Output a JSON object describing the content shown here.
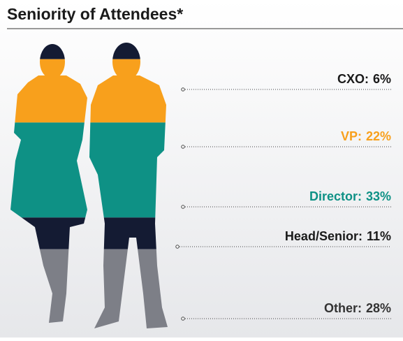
{
  "chart_data": {
    "type": "pictorial",
    "title": "Seniority of Attendees*",
    "categories": [
      "CXO:",
      "VP:",
      "Director:",
      "Head/Senior:",
      "Other:"
    ],
    "values": [
      6,
      22,
      33,
      11,
      28
    ],
    "value_labels": [
      "6%",
      "22%",
      "33%",
      "11%",
      "28%"
    ],
    "colors": [
      "#141b33",
      "#f8a01c",
      "#0e9185",
      "#141b33",
      "#7d7f87"
    ],
    "label_colors": [
      "#1a1a1a",
      "#f8a01c",
      "#0e9185",
      "#1a1a1a",
      "#333333"
    ]
  }
}
